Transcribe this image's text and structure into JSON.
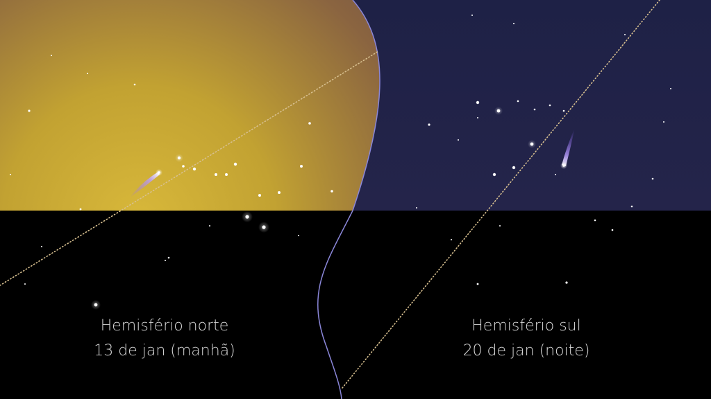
{
  "northern": {
    "hemisphere": "Hemisfério norte",
    "date": "13 de jan (manhã)"
  },
  "southern": {
    "hemisphere": "Hemisfério sul",
    "date": "20 de jan (noite)"
  },
  "colors": {
    "twilight_glow": "#c8a832",
    "twilight_upper": "#7a5a4a",
    "night_sky": "#1f2142",
    "ground": "#000000",
    "divider": "#8a86d8",
    "ecliptic": "#d8c090",
    "comet_tail": "#9a6cff"
  }
}
